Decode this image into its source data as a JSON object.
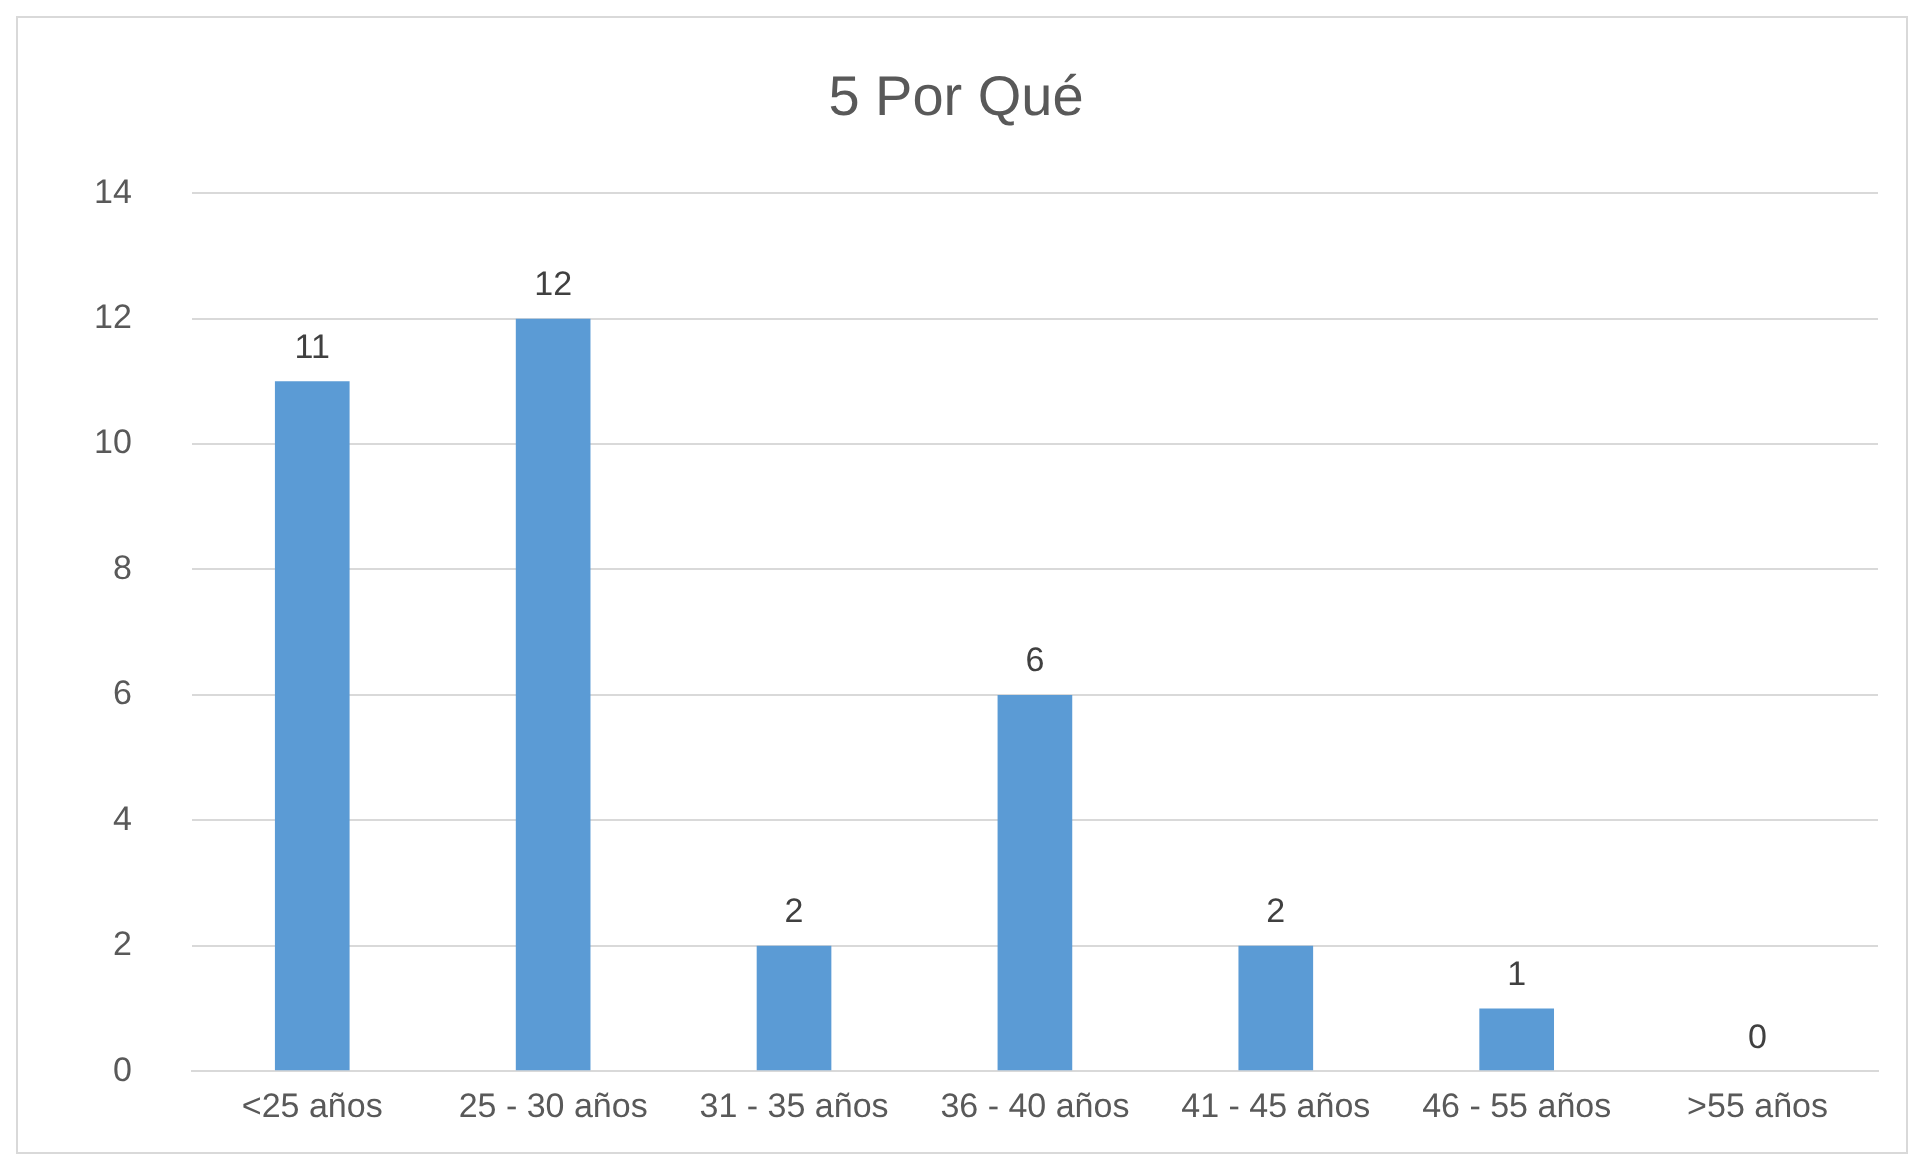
{
  "chart_data": {
    "type": "bar",
    "title": "5 Por Qué",
    "categories": [
      "<25 años",
      "25 - 30 años",
      "31 - 35 años",
      "36 - 40 años",
      "41 - 45 años",
      "46 - 55 años",
      ">55 años"
    ],
    "values": [
      11,
      12,
      2,
      6,
      2,
      1,
      0
    ],
    "color": "#5b9bd5",
    "ylim": [
      0,
      14
    ],
    "yticks": [
      0,
      2,
      4,
      6,
      8,
      10,
      12,
      14
    ],
    "grid": "y",
    "data_labels": true
  }
}
